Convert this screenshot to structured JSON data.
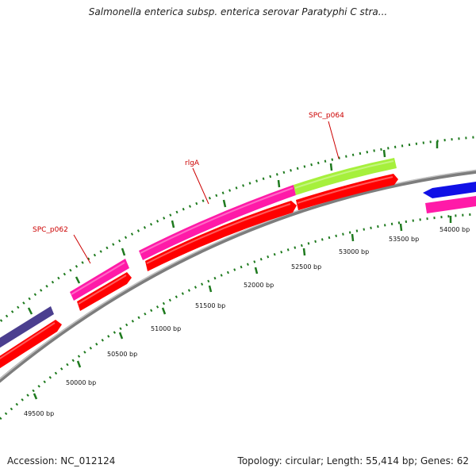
{
  "header": {
    "title": "Salmonella enterica subsp. enterica serovar Paratyphi C stra..."
  },
  "footer": {
    "accession": "Accession: NC_012124",
    "topology": "Topology: circular; Length: 55,414 bp; Genes: 62"
  },
  "map": {
    "position_labels": [
      "49500 bp",
      "50000 bp",
      "50500 bp",
      "51000 bp",
      "51500 bp",
      "52000 bp",
      "52500 bp",
      "53000 bp",
      "53500 bp",
      "54000 bp"
    ],
    "gene_labels": [
      "SPC_p062",
      "rlgA",
      "SPC_p064"
    ],
    "colors": {
      "backbone": "#8a8a8a",
      "cds": "#ff0000",
      "feature_pink": "#ff1aa8",
      "feature_green": "#a6f03c",
      "feature_purple": "#4b3f8f",
      "feature_blue": "#1010e6",
      "ticks": "#1e7a1e",
      "label": "#cc0000"
    }
  }
}
